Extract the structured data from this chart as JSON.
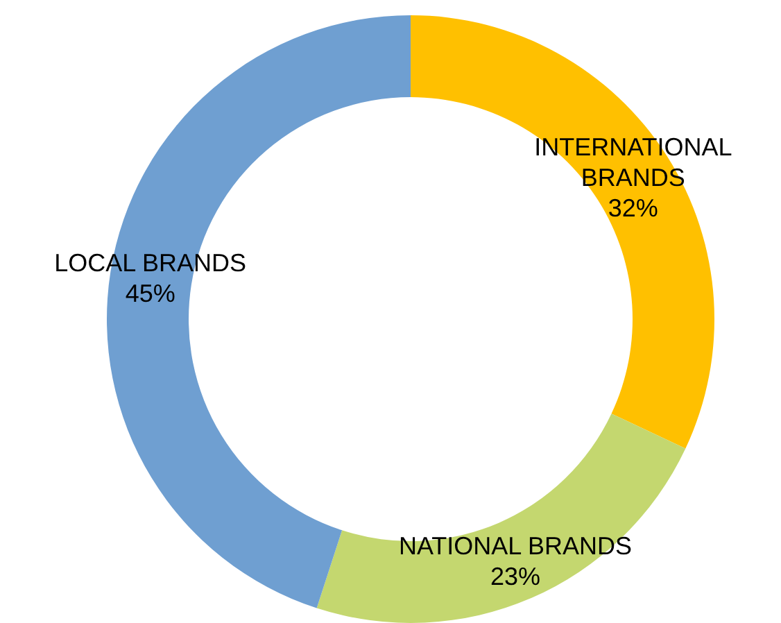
{
  "chart_data": {
    "type": "donut",
    "categories": [
      "INTERNATIONAL BRANDS",
      "NATIONAL BRANDS",
      "LOCAL BRANDS"
    ],
    "values": [
      32,
      23,
      45
    ],
    "value_labels": [
      "32%",
      "23%",
      "45%"
    ],
    "colors": [
      "#ffc000",
      "#c4d76f",
      "#6f9fd1"
    ]
  }
}
